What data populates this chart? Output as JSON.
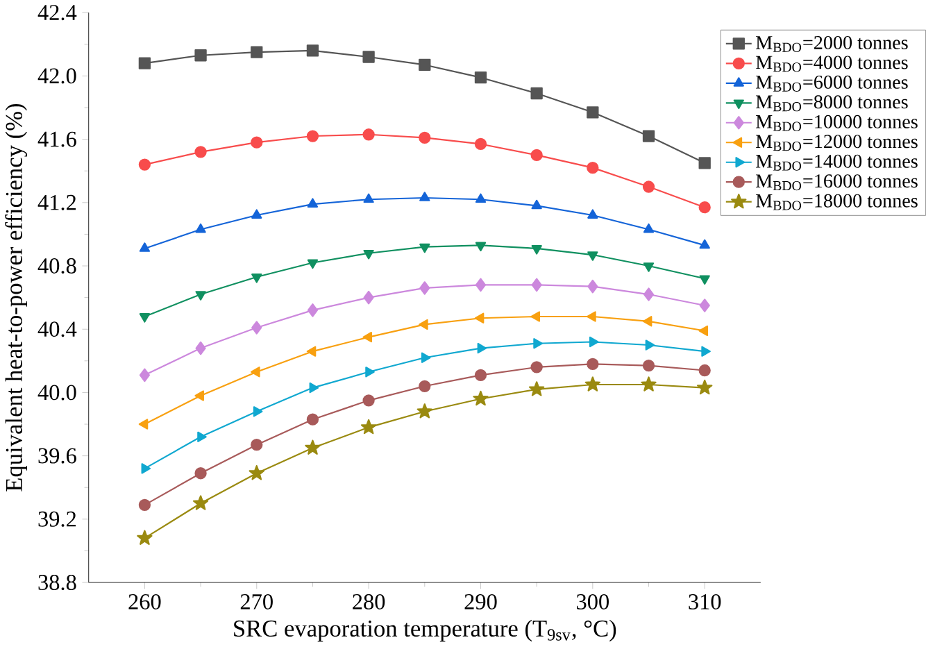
{
  "chart_data": {
    "type": "line",
    "xlabel": "SRC evaporation temperature (T$_{9sv}$, °C)",
    "ylabel": "Equivalent heat-to-power efficiency (%)",
    "x": [
      260,
      265,
      270,
      275,
      280,
      285,
      290,
      295,
      300,
      305,
      310
    ],
    "xlim": [
      255,
      315
    ],
    "xticks": [
      260,
      270,
      280,
      290,
      300,
      310
    ],
    "ylim": [
      38.8,
      42.4
    ],
    "yticks": [
      38.8,
      39.2,
      39.6,
      {
        "value": 40.0,
        "label": "40.0"
      },
      40.4,
      40.8,
      41.2,
      41.6,
      {
        "value": 42.0,
        "label": "42.0"
      },
      42.4
    ],
    "grid": false,
    "legend": "top right",
    "line_style": "solid",
    "series": [
      {
        "name": "M$_{BDO}$=2000 tonnes",
        "color": "#555555",
        "marker": "square",
        "values": [
          42.08,
          42.13,
          42.15,
          42.16,
          42.12,
          42.07,
          41.99,
          41.89,
          41.77,
          41.62,
          41.45
        ]
      },
      {
        "name": "M$_{BDO}$=4000 tonnes",
        "color": "#f84c4c",
        "marker": "circle",
        "values": [
          41.44,
          41.52,
          41.58,
          41.62,
          41.63,
          41.61,
          41.57,
          41.5,
          41.42,
          41.3,
          41.17
        ]
      },
      {
        "name": "M$_{BDO}$=6000 tonnes",
        "color": "#1464d8",
        "marker": "triangle",
        "values": [
          40.91,
          41.03,
          41.12,
          41.19,
          41.22,
          41.23,
          41.22,
          41.18,
          41.12,
          41.03,
          40.93
        ]
      },
      {
        "name": "M$_{BDO}$=8000 tonnes",
        "color": "#109060",
        "marker": "triangle-down",
        "values": [
          40.48,
          40.62,
          40.73,
          40.82,
          40.88,
          40.92,
          40.93,
          40.91,
          40.87,
          40.8,
          40.72
        ]
      },
      {
        "name": "M$_{BDO}$=10000 tonnes",
        "color": "#cc88dd",
        "marker": "diamond",
        "values": [
          40.11,
          40.28,
          40.41,
          40.52,
          40.6,
          40.66,
          40.68,
          40.68,
          40.67,
          40.62,
          40.55
        ]
      },
      {
        "name": "M$_{BDO}$=12000 tonnes",
        "color": "#f8a010",
        "marker": "triangle-left",
        "values": [
          39.8,
          39.98,
          40.13,
          40.26,
          40.35,
          40.43,
          40.47,
          40.48,
          40.48,
          40.45,
          40.39
        ]
      },
      {
        "name": "M$_{BDO}$=14000 tonnes",
        "color": "#10a8d0",
        "marker": "triangle-right",
        "values": [
          39.52,
          39.72,
          39.88,
          40.03,
          40.13,
          40.22,
          40.28,
          40.31,
          40.32,
          40.3,
          40.26
        ]
      },
      {
        "name": "M$_{BDO}$=16000 tonnes",
        "color": "#a85a5a",
        "marker": "circle",
        "values": [
          39.29,
          39.49,
          39.67,
          39.83,
          39.95,
          40.04,
          40.11,
          40.16,
          40.18,
          40.17,
          40.14
        ]
      },
      {
        "name": "M$_{BDO}$=18000 tonnes",
        "color": "#9a8a10",
        "marker": "star",
        "values": [
          39.08,
          39.3,
          39.49,
          39.65,
          39.78,
          39.88,
          39.96,
          40.02,
          40.05,
          40.05,
          40.03
        ]
      }
    ]
  }
}
